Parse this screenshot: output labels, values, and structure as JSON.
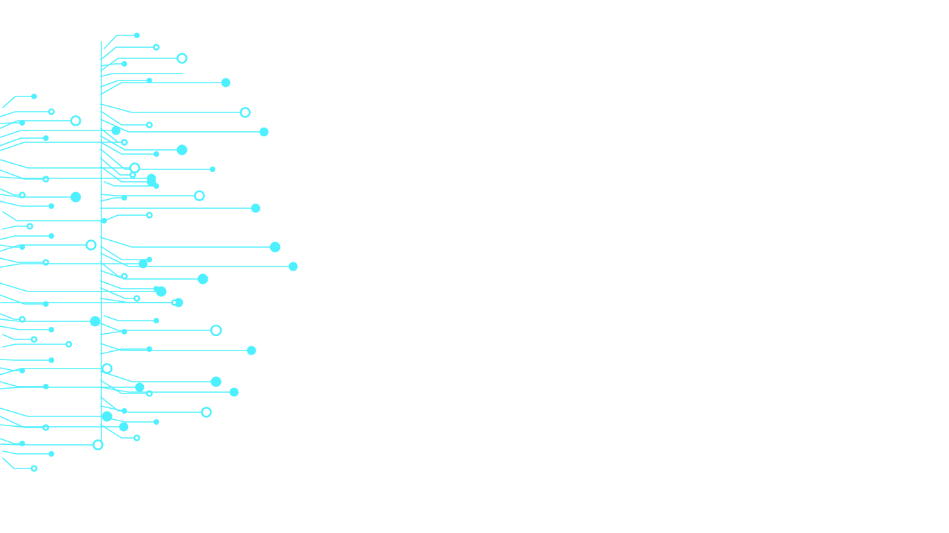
{
  "background_color": "#ffffff",
  "graphic": {
    "type": "decorative-circuit-board-traces",
    "color": "#4cf0ff",
    "icon": "circuit-board-icon"
  }
}
